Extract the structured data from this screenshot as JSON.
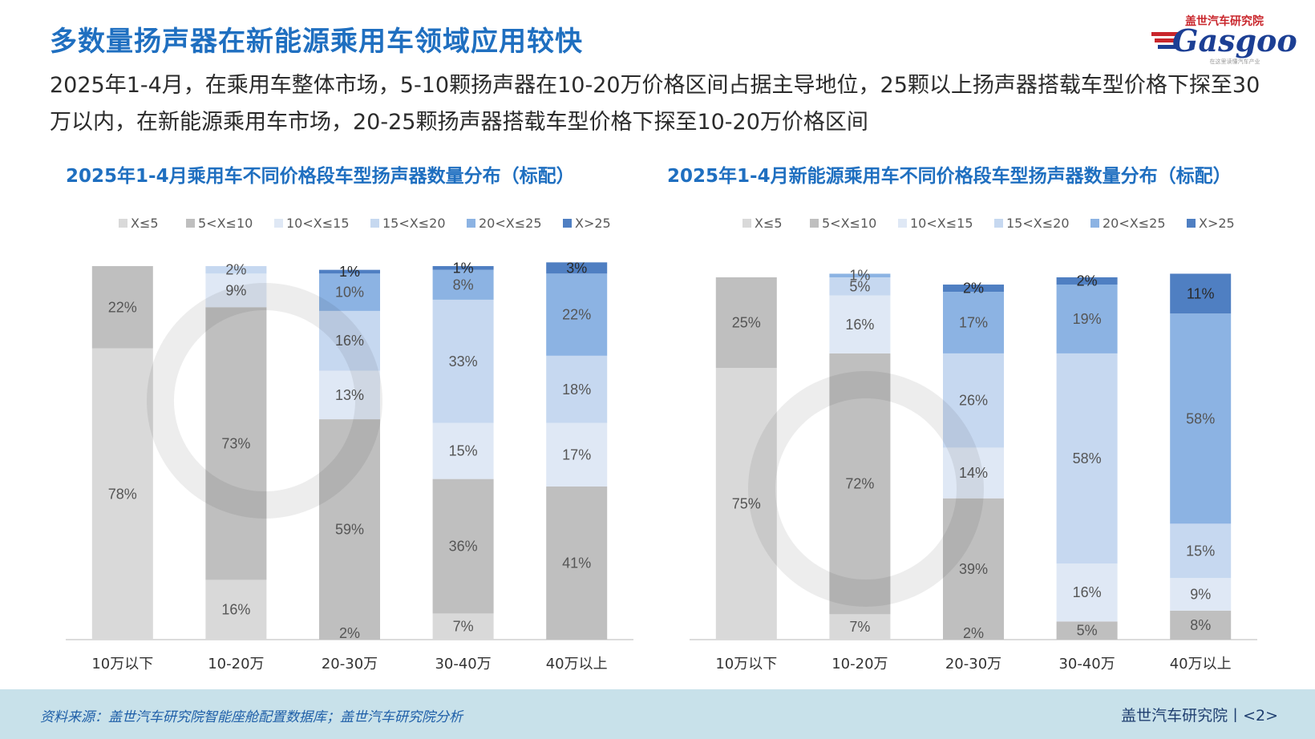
{
  "header": {
    "title": "多数量扬声器在新能源乘用车领域应用较快",
    "subtitle": "2025年1-4月，在乘用车整体市场，5-10颗扬声器在10-20万价格区间占据主导地位，25颗以上扬声器搭载车型价格下探至30万以内，在新能源乘用车市场，20-25颗扬声器搭载车型价格下探至10-20万价格区间"
  },
  "logo": {
    "brand_cn": "盖世汽车研究院",
    "brand_en": "Gasgoo",
    "slogan": "在这里读懂汽车产业"
  },
  "colors": {
    "accent": "#1f6fc0",
    "series": [
      "#d9d9d9",
      "#bfbfbf",
      "#dfe8f5",
      "#c6d8f0",
      "#8cb3e3",
      "#4f7fc2"
    ]
  },
  "chart_data": [
    {
      "type": "bar",
      "stacked": true,
      "title": "2025年1-4月乘用车不同价格段车型扬声器数量分布（标配）",
      "categories": [
        "10万以下",
        "10-20万",
        "20-30万",
        "30-40万",
        "40万以上"
      ],
      "series": [
        {
          "name": "X≤5",
          "values": [
            78,
            16,
            0,
            7,
            0
          ],
          "labels": [
            "78%",
            "16%",
            "",
            "7%",
            ""
          ]
        },
        {
          "name": "5<X≤10",
          "values": [
            22,
            73,
            59,
            36,
            41
          ],
          "labels": [
            "22%",
            "73%",
            "59%",
            "36%",
            "41%"
          ]
        },
        {
          "name": "10<X≤15",
          "values": [
            0,
            9,
            13,
            15,
            17
          ],
          "labels": [
            "",
            "9%",
            "13%",
            "15%",
            "17%"
          ]
        },
        {
          "name": "15<X≤20",
          "values": [
            0,
            2,
            16,
            33,
            18
          ],
          "labels": [
            "",
            "2%",
            "16%",
            "33%",
            "18%"
          ]
        },
        {
          "name": "20<X≤25",
          "values": [
            0,
            0,
            10,
            8,
            22
          ],
          "labels": [
            "",
            "",
            "10%",
            "8%",
            "22%"
          ]
        },
        {
          "name": "X>25",
          "values": [
            0,
            0,
            1,
            1,
            3
          ],
          "labels": [
            "",
            "",
            "1%",
            "1%",
            "3%"
          ]
        }
      ],
      "extra_labels": [
        {
          "category_index": 2,
          "text": "2%"
        }
      ],
      "ylim": [
        0,
        100
      ],
      "legend": "top"
    },
    {
      "type": "bar",
      "stacked": true,
      "title": "2025年1-4月新能源乘用车不同价格段车型扬声器数量分布（标配）",
      "categories": [
        "10万以下",
        "10-20万",
        "20-30万",
        "30-40万",
        "40万以上"
      ],
      "series": [
        {
          "name": "X≤5",
          "values": [
            75,
            7,
            0,
            0,
            0
          ],
          "labels": [
            "75%",
            "7%",
            "",
            "",
            ""
          ]
        },
        {
          "name": "5<X≤10",
          "values": [
            25,
            72,
            39,
            5,
            8
          ],
          "labels": [
            "25%",
            "72%",
            "39%",
            "5%",
            "8%"
          ]
        },
        {
          "name": "10<X≤15",
          "values": [
            0,
            16,
            14,
            16,
            9
          ],
          "labels": [
            "",
            "16%",
            "14%",
            "16%",
            "9%"
          ]
        },
        {
          "name": "15<X≤20",
          "values": [
            0,
            5,
            26,
            58,
            15
          ],
          "labels": [
            "",
            "5%",
            "26%",
            "58%",
            "15%"
          ]
        },
        {
          "name": "20<X≤25",
          "values": [
            0,
            1,
            17,
            19,
            58
          ],
          "labels": [
            "",
            "1%",
            "17%",
            "19%",
            "58%"
          ]
        },
        {
          "name": "X>25",
          "values": [
            0,
            0,
            2,
            2,
            11
          ],
          "labels": [
            "",
            "",
            "2%",
            "2%",
            "11%"
          ]
        }
      ],
      "extra_labels": [
        {
          "category_index": 2,
          "text": "2%"
        }
      ],
      "ylim": [
        0,
        100
      ],
      "legend": "top"
    }
  ],
  "footer": {
    "source": "资料来源：盖世汽车研究院智能座舱配置数据库；盖世汽车研究院分析",
    "brand": "盖世汽车研究院丨<2>"
  }
}
